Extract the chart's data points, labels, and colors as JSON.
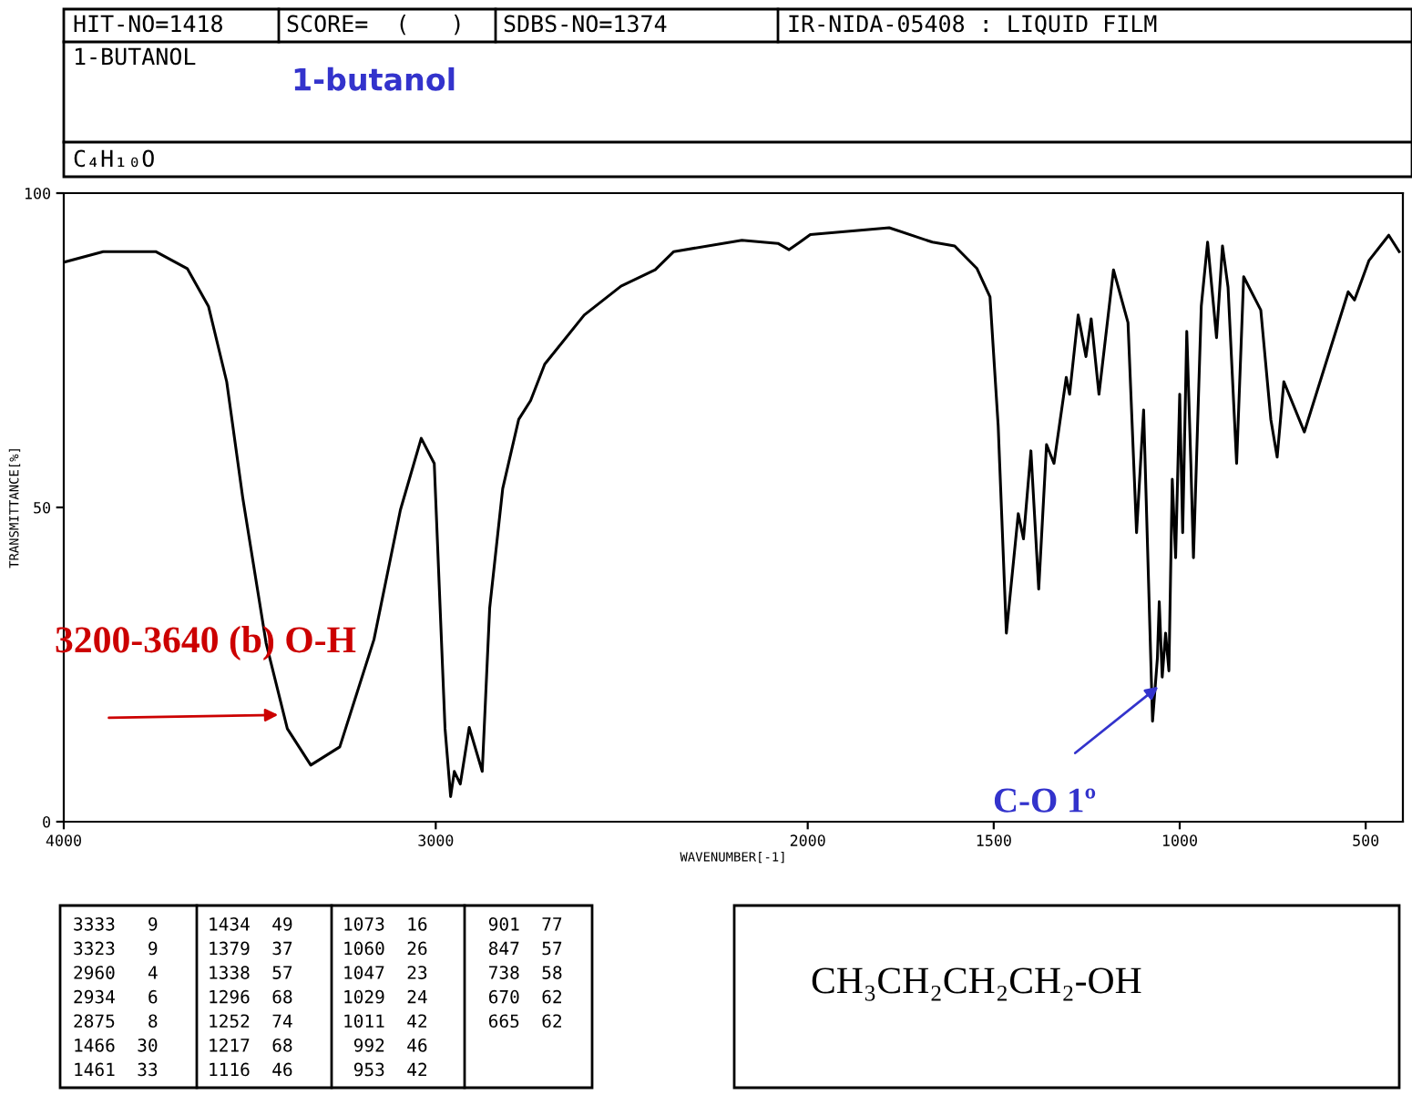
{
  "chart_data": {
    "type": "line",
    "title": "1-butanol",
    "xlabel": "WAVENUMBER[-1]",
    "ylabel": "TRANSMITTANCE[%]",
    "x": [
      4000,
      3894,
      3753,
      3668,
      3611,
      3562,
      3519,
      3456,
      3399,
      3336,
      3258,
      3166,
      3095,
      3039,
      3004,
      2975,
      2960,
      2950,
      2934,
      2910,
      2875,
      2855,
      2820,
      2777,
      2745,
      2707,
      2601,
      2502,
      2410,
      2360,
      2177,
      2080,
      2050,
      2021,
      1993,
      1781,
      1665,
      1605,
      1545,
      1510,
      1488,
      1466,
      1461,
      1434,
      1420,
      1400,
      1379,
      1358,
      1338,
      1305,
      1296,
      1273,
      1252,
      1238,
      1217,
      1178,
      1139,
      1116,
      1097,
      1073,
      1060,
      1055,
      1047,
      1038,
      1029,
      1020,
      1011,
      1000,
      992,
      981,
      970,
      963,
      942,
      925,
      901,
      885,
      870,
      847,
      828,
      782,
      755,
      738,
      720,
      665,
      547,
      530,
      491,
      438,
      410
    ],
    "series": [
      {
        "color": "#000000",
        "values": [
          89,
          90.7,
          90.7,
          88,
          82,
          70,
          51.6,
          28.4,
          14.8,
          9,
          11.9,
          29,
          49.6,
          61,
          57,
          14.8,
          4,
          8,
          6,
          15,
          8,
          34,
          53,
          64,
          67,
          72.8,
          80.6,
          85.2,
          87.8,
          90.7,
          92.5,
          92,
          91,
          92.2,
          93.4,
          94.5,
          92.2,
          91.6,
          88,
          83.5,
          63,
          30,
          33,
          49,
          45,
          59,
          37,
          60,
          57,
          70.7,
          68,
          80.6,
          74,
          80,
          68,
          87.8,
          79.4,
          46,
          65.5,
          16,
          26,
          35,
          23,
          30,
          24,
          54.5,
          42,
          68,
          46,
          78,
          57,
          42,
          82,
          92.2,
          77,
          91.6,
          85,
          57,
          86.7,
          81.4,
          64,
          58,
          70,
          62,
          84.3,
          83,
          89.3,
          93.3,
          90.7
        ]
      }
    ],
    "xlim": [
      4000,
      400
    ],
    "xticks": [
      4000,
      3000,
      2000,
      1500,
      1000,
      500
    ],
    "ylim": [
      0,
      100
    ],
    "yticks": [
      0,
      50,
      100
    ],
    "grid": false,
    "legend": false,
    "marker": "none",
    "line_style": "solid",
    "annotations": [
      "HIT-NO=1418",
      "SCORE=  (   )",
      "SDBS-NO=1374",
      "IR-NIDA-05408 : LIQUID FILM",
      "1-BUTANOL",
      "C₄H₁₀O",
      {
        "text": "3200-3640 (b) O-H",
        "x": 3410,
        "y": 17
      },
      {
        "text": "C-O 1º",
        "x": 1047,
        "y": 22
      },
      "CH₃CH₂CH₂CH₂-OH",
      "3333   9",
      "3323   9",
      "2960   4",
      "2934   6",
      "2875   8",
      "1466  30",
      "1461  33",
      "1434  49",
      "1379  37",
      "1338  57",
      "1296  68",
      "1252  74",
      "1217  68",
      "1116  46",
      "1073  16",
      "1060  26",
      "1047  23",
      "1029  24",
      "1011  42",
      " 992  46",
      " 953  42",
      " 901  77",
      " 847  57",
      " 738  58",
      " 670  62",
      " 665  62"
    ]
  }
}
